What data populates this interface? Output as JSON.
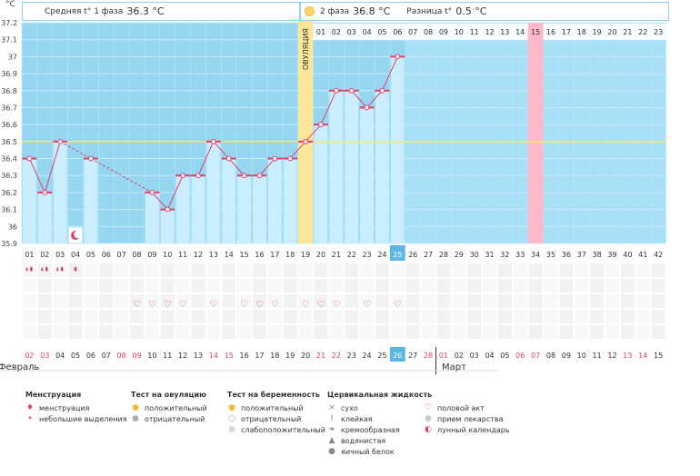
{
  "unit": "°C",
  "header": {
    "phase1_label": "Средняя t° 1 фаза",
    "phase1_value": "36.3 °C",
    "phase2_label": "2 фаза",
    "phase2_value": "36.8 °C",
    "diff_label": "Разница t°",
    "diff_value": "0.5 °C"
  },
  "ovulation_label": "ОВУЛЯЦИЯ",
  "months": {
    "first": "Февраль",
    "second": "Март"
  },
  "colors": {
    "grid_bg": "#96d6f0",
    "future_bg": "#a8e0f8",
    "bar_fill": "#cbeefe",
    "ovulation_band": "#fbe79a",
    "expected_period": "#ffb8c8",
    "line": "#e0406a",
    "coverline": "#f3ec70"
  },
  "chart_data": {
    "type": "line",
    "ylim": [
      35.9,
      37.2
    ],
    "yticks": [
      "35.9",
      "36",
      "36.1",
      "36.2",
      "36.3",
      "36.4",
      "36.5",
      "36.6",
      "36.7",
      "36.8",
      "36.9",
      "37",
      "37.1",
      "37.2"
    ],
    "coverline": 36.5,
    "cycle_days": [
      "01",
      "02",
      "03",
      "04",
      "05",
      "06",
      "07",
      "08",
      "09",
      "10",
      "11",
      "12",
      "13",
      "14",
      "15",
      "16",
      "17",
      "18",
      "19",
      "20",
      "21",
      "22",
      "23",
      "24",
      "25",
      "26",
      "27",
      "28",
      "29",
      "30",
      "31",
      "32",
      "33",
      "34",
      "35",
      "36",
      "37",
      "38",
      "39",
      "40",
      "41",
      "42"
    ],
    "highlighted_cycle_day": "25",
    "phase2_day_labels": [
      "01",
      "02",
      "03",
      "04",
      "05",
      "06",
      "07",
      "08",
      "09",
      "10",
      "11",
      "12",
      "13",
      "14",
      "15",
      "16",
      "17",
      "18",
      "19",
      "20",
      "21",
      "22",
      "23"
    ],
    "phase2_highlight": "15",
    "ovulation_day": 19,
    "expected_period_day": 34,
    "series": [
      {
        "day": 1,
        "temp": 36.4
      },
      {
        "day": 2,
        "temp": 36.2
      },
      {
        "day": 3,
        "temp": 36.5
      },
      {
        "day": 4,
        "temp": null
      },
      {
        "day": 5,
        "temp": 36.4
      },
      {
        "day": 6,
        "temp": null
      },
      {
        "day": 7,
        "temp": null
      },
      {
        "day": 8,
        "temp": null
      },
      {
        "day": 9,
        "temp": 36.2
      },
      {
        "day": 10,
        "temp": 36.1
      },
      {
        "day": 11,
        "temp": 36.3
      },
      {
        "day": 12,
        "temp": 36.3
      },
      {
        "day": 13,
        "temp": 36.5
      },
      {
        "day": 14,
        "temp": 36.4
      },
      {
        "day": 15,
        "temp": 36.3
      },
      {
        "day": 16,
        "temp": 36.3
      },
      {
        "day": 17,
        "temp": 36.4
      },
      {
        "day": 18,
        "temp": 36.4
      },
      {
        "day": 19,
        "temp": 36.5
      },
      {
        "day": 20,
        "temp": 36.6
      },
      {
        "day": 21,
        "temp": 36.8
      },
      {
        "day": 22,
        "temp": 36.8
      },
      {
        "day": 23,
        "temp": 36.7
      },
      {
        "day": 24,
        "temp": 36.8
      },
      {
        "day": 25,
        "temp": 37.0
      }
    ],
    "low_bar_days": [
      4
    ],
    "moon_days": [
      4
    ],
    "menstruation_days": [
      1,
      2,
      3
    ],
    "light_spotting_days": [
      4
    ],
    "intercourse_days": [
      8,
      9,
      10,
      11,
      13,
      15,
      16,
      17,
      19,
      20,
      21,
      23,
      25
    ],
    "calendar_dates": [
      "02",
      "03",
      "04",
      "05",
      "06",
      "07",
      "08",
      "09",
      "10",
      "11",
      "12",
      "13",
      "14",
      "15",
      "16",
      "17",
      "18",
      "19",
      "20",
      "21",
      "22",
      "23",
      "24",
      "25",
      "26",
      "27",
      "28",
      "01",
      "02",
      "03",
      "04",
      "05",
      "06",
      "07",
      "08",
      "09",
      "10",
      "11",
      "12",
      "13",
      "14",
      "15"
    ],
    "calendar_red_indices": [
      0,
      1,
      6,
      7,
      12,
      13,
      19,
      20,
      26,
      27,
      32,
      33,
      39,
      40
    ],
    "calendar_highlight_index": 24,
    "month_break_index": 27
  },
  "legend": [
    {
      "title": "Менструация",
      "items": [
        {
          "icon": "drop-pair-icon",
          "glyph": "♦",
          "color": "#e0406a",
          "label": "менструация"
        },
        {
          "icon": "small-drop-icon",
          "glyph": "•",
          "color": "#e0406a",
          "label": "небольшие выделения"
        }
      ]
    },
    {
      "title": "Тест на овуляцию",
      "items": [
        {
          "icon": "sun-positive-icon",
          "glyph": "●",
          "color": "#f5b942",
          "label": "положительный"
        },
        {
          "icon": "sun-negative-icon",
          "glyph": "●",
          "color": "#b0b0b0",
          "label": "отрицательный"
        }
      ]
    },
    {
      "title": "Тест на беременность",
      "items": [
        {
          "icon": "test-positive-icon",
          "glyph": "●",
          "color": "#f5b942",
          "label": "положительный"
        },
        {
          "icon": "test-negative-icon",
          "glyph": "○",
          "color": "#999999",
          "label": "отрицательный"
        },
        {
          "icon": "test-weak-icon",
          "glyph": "●",
          "color": "#d8d8d8",
          "label": "слабоположительный"
        }
      ]
    },
    {
      "title": "Цервикальная жидкость",
      "items": [
        {
          "icon": "dry-icon",
          "glyph": "×",
          "color": "#888888",
          "label": "сухо"
        },
        {
          "icon": "sticky-icon",
          "glyph": "Ι",
          "color": "#888888",
          "label": "клейкая"
        },
        {
          "icon": "creamy-icon",
          "glyph": "❧",
          "color": "#888888",
          "label": "кремообразная"
        },
        {
          "icon": "watery-icon",
          "glyph": "▲",
          "color": "#888888",
          "label": "водянистая"
        },
        {
          "icon": "egg-white-icon",
          "glyph": "●",
          "color": "#888888",
          "label": "яичный белок"
        }
      ]
    },
    {
      "title": "",
      "items": [
        {
          "icon": "heart-icon",
          "glyph": "♡",
          "color": "#e0406a",
          "label": "половой акт"
        },
        {
          "icon": "pill-icon",
          "glyph": "●",
          "color": "#c8c8c8",
          "label": "прием лекарства"
        },
        {
          "icon": "moon-icon",
          "glyph": "◐",
          "color": "#e0406a",
          "label": "лунный календарь"
        }
      ]
    }
  ]
}
